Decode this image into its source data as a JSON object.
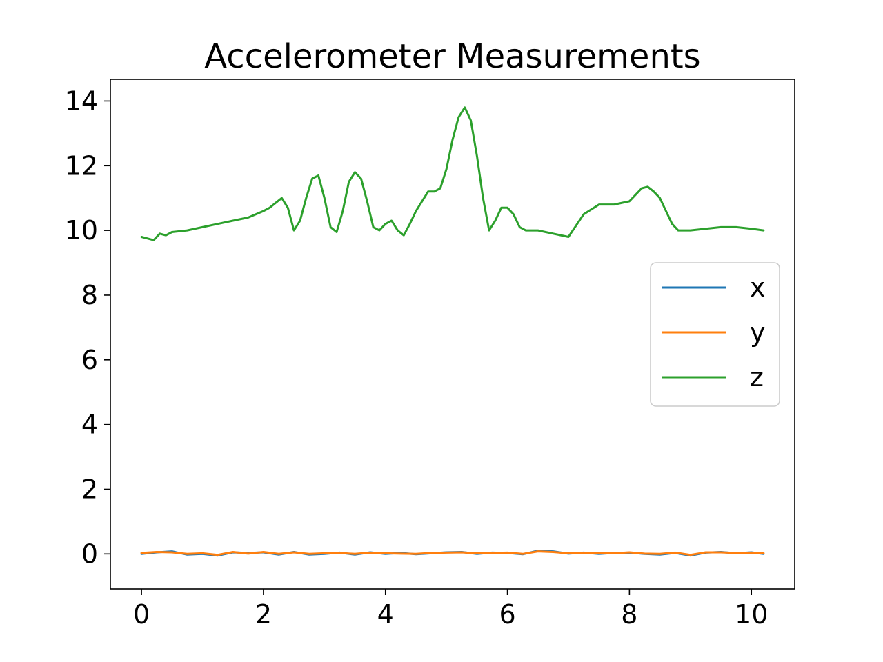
{
  "chart_data": {
    "type": "line",
    "title": "Accelerometer Measurements",
    "xlabel": "",
    "ylabel": "",
    "xlim": [
      -0.51,
      10.71
    ],
    "ylim": [
      -1.08,
      14.67
    ],
    "xticks": [
      0,
      2,
      4,
      6,
      8,
      10
    ],
    "yticks": [
      0,
      2,
      4,
      6,
      8,
      10,
      12,
      14
    ],
    "grid": false,
    "legend_position": "center-right",
    "series": [
      {
        "name": "x",
        "color": "#1f77b4",
        "x": [
          0,
          0.25,
          0.5,
          0.75,
          1.0,
          1.25,
          1.5,
          1.75,
          2.0,
          2.25,
          2.5,
          2.75,
          3.0,
          3.25,
          3.5,
          3.75,
          4.0,
          4.25,
          4.5,
          4.75,
          5.0,
          5.25,
          5.5,
          5.75,
          6.0,
          6.25,
          6.5,
          6.75,
          7.0,
          7.25,
          7.5,
          7.75,
          8.0,
          8.25,
          8.5,
          8.75,
          9.0,
          9.25,
          9.5,
          9.75,
          10.0,
          10.2
        ],
        "y": [
          0.0,
          0.05,
          0.08,
          -0.02,
          0.0,
          -0.05,
          0.05,
          0.03,
          0.05,
          -0.02,
          0.06,
          -0.02,
          0.0,
          0.04,
          -0.02,
          0.05,
          0.0,
          0.03,
          -0.01,
          0.02,
          0.05,
          0.06,
          0.0,
          0.04,
          0.03,
          -0.01,
          0.1,
          0.08,
          0.01,
          0.04,
          0.0,
          0.03,
          0.04,
          0.0,
          -0.02,
          0.03,
          -0.05,
          0.04,
          0.06,
          0.02,
          0.05,
          0.0
        ]
      },
      {
        "name": "y",
        "color": "#ff7f0e",
        "x": [
          0,
          0.25,
          0.5,
          0.75,
          1.0,
          1.25,
          1.5,
          1.75,
          2.0,
          2.25,
          2.5,
          2.75,
          3.0,
          3.25,
          3.5,
          3.75,
          4.0,
          4.25,
          4.5,
          4.75,
          5.0,
          5.25,
          5.5,
          5.75,
          6.0,
          6.25,
          6.5,
          6.75,
          7.0,
          7.25,
          7.5,
          7.75,
          8.0,
          8.25,
          8.5,
          8.75,
          9.0,
          9.25,
          9.5,
          9.75,
          10.0,
          10.2
        ],
        "y": [
          0.03,
          0.06,
          0.05,
          0.0,
          0.02,
          -0.03,
          0.06,
          0.01,
          0.06,
          0.0,
          0.05,
          0.0,
          0.02,
          0.03,
          0.0,
          0.04,
          0.02,
          0.01,
          0.0,
          0.03,
          0.04,
          0.05,
          0.02,
          0.03,
          0.04,
          0.0,
          0.08,
          0.06,
          0.02,
          0.03,
          0.02,
          0.02,
          0.05,
          0.01,
          0.0,
          0.04,
          -0.03,
          0.05,
          0.05,
          0.03,
          0.04,
          0.02
        ]
      },
      {
        "name": "z",
        "color": "#2ca02c",
        "x": [
          0,
          0.1,
          0.2,
          0.3,
          0.4,
          0.5,
          0.75,
          1.0,
          1.25,
          1.5,
          1.75,
          2.0,
          2.1,
          2.2,
          2.3,
          2.4,
          2.5,
          2.6,
          2.7,
          2.8,
          2.9,
          3.0,
          3.1,
          3.2,
          3.3,
          3.4,
          3.5,
          3.6,
          3.7,
          3.8,
          3.9,
          4.0,
          4.1,
          4.2,
          4.3,
          4.4,
          4.5,
          4.6,
          4.7,
          4.8,
          4.9,
          5.0,
          5.1,
          5.2,
          5.3,
          5.4,
          5.5,
          5.6,
          5.7,
          5.8,
          5.9,
          6.0,
          6.1,
          6.2,
          6.3,
          6.5,
          6.75,
          7.0,
          7.25,
          7.5,
          7.75,
          8.0,
          8.1,
          8.2,
          8.3,
          8.4,
          8.5,
          8.6,
          8.7,
          8.8,
          9.0,
          9.25,
          9.5,
          9.75,
          10.0,
          10.2
        ],
        "y": [
          9.8,
          9.75,
          9.7,
          9.9,
          9.85,
          9.95,
          10.0,
          10.1,
          10.2,
          10.3,
          10.4,
          10.6,
          10.7,
          10.85,
          11.0,
          10.7,
          10.0,
          10.3,
          11.0,
          11.6,
          11.7,
          11.0,
          10.1,
          9.95,
          10.6,
          11.5,
          11.8,
          11.6,
          10.9,
          10.1,
          10.0,
          10.2,
          10.3,
          10.0,
          9.85,
          10.2,
          10.6,
          10.9,
          11.2,
          11.2,
          11.3,
          11.9,
          12.8,
          13.5,
          13.8,
          13.4,
          12.3,
          11.0,
          10.0,
          10.3,
          10.7,
          10.7,
          10.5,
          10.1,
          10.0,
          10.0,
          9.9,
          9.8,
          10.5,
          10.8,
          10.8,
          10.9,
          11.1,
          11.3,
          11.35,
          11.2,
          11.0,
          10.6,
          10.2,
          10.0,
          10.0,
          10.05,
          10.1,
          10.1,
          10.05,
          10.0
        ]
      }
    ]
  }
}
